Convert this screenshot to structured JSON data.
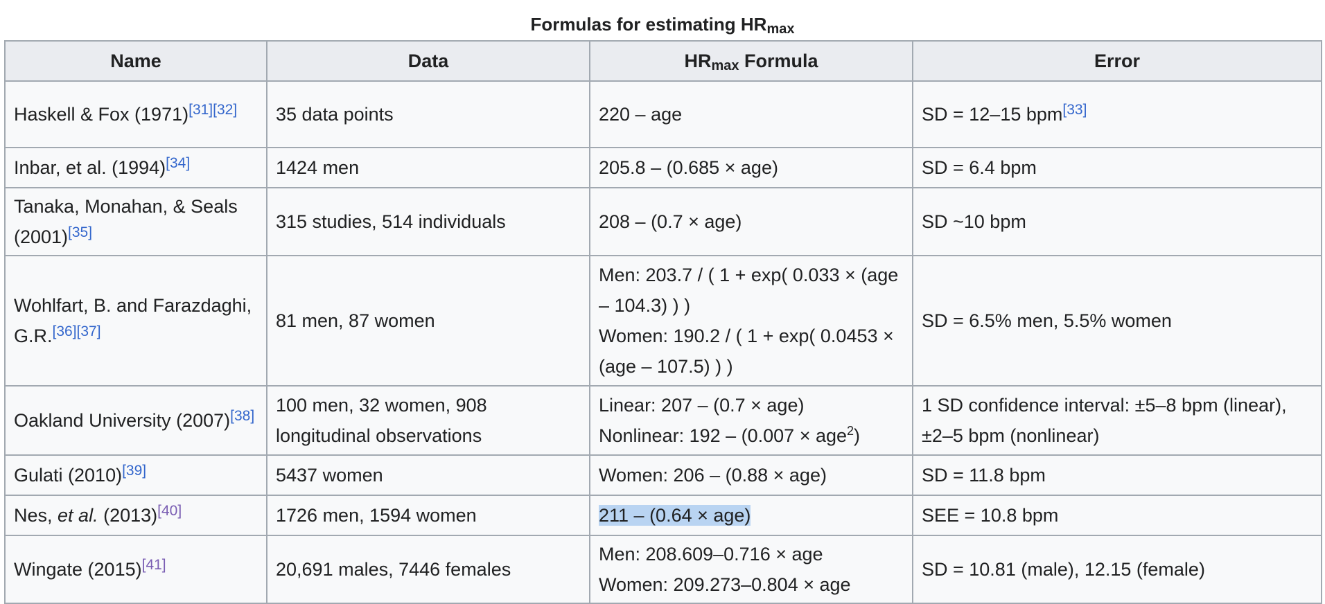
{
  "caption": {
    "prefix": "Formulas for estimating HR",
    "sub": "max"
  },
  "headers": {
    "name": "Name",
    "data": "Data",
    "formula_prefix": "HR",
    "formula_sub": "max",
    "formula_suffix": " Formula",
    "error": "Error"
  },
  "rows": [
    {
      "name": "Haskell & Fox (1971)",
      "refs": [
        "[31]",
        "[32]"
      ],
      "data": "35 data points",
      "formula": "220 – age",
      "error": "SD = 12–15 bpm",
      "error_ref": "[33]"
    },
    {
      "name": "Inbar, et al. (1994)",
      "refs": [
        "[34]"
      ],
      "data": "1424 men",
      "formula": "205.8 – (0.685 × age)",
      "error": "SD = 6.4 bpm"
    },
    {
      "name": "Tanaka, Monahan, & Seals (2001)",
      "refs": [
        "[35]"
      ],
      "data": "315 studies, 514 individuals",
      "formula": "208 – (0.7 × age)",
      "error": "SD ~10 bpm"
    },
    {
      "name": "Wohlfart, B. and Farazdaghi, G.R.",
      "refs": [
        "[36]",
        "[37]"
      ],
      "data": "81 men, 87 women",
      "formula_men": "Men: 203.7 / ( 1 + exp( 0.033 × (age – 104.3) ) )",
      "formula_women": "Women: 190.2 / ( 1 + exp( 0.0453 × (age – 107.5) ) )",
      "error": "SD = 6.5% men, 5.5% women"
    },
    {
      "name": "Oakland University (2007)",
      "refs": [
        "[38]"
      ],
      "data": "100 men, 32 women, 908 longitudinal observations",
      "formula_linear": "Linear: 207 – (0.7 × age)",
      "formula_nonlinear_prefix": "Nonlinear: 192 – (0.007 × age",
      "formula_nonlinear_pow": "2",
      "formula_nonlinear_suffix": ")",
      "error": "1 SD confidence interval: ±5–8 bpm (linear), ±2–5 bpm (nonlinear)"
    },
    {
      "name": "Gulati (2010)",
      "refs": [
        "[39]"
      ],
      "data": "5437 women",
      "formula": "Women: 206 – (0.88 × age)",
      "error": "SD = 11.8 bpm"
    },
    {
      "name_prefix": "Nes, ",
      "name_em": "et al.",
      "name_suffix": " (2013)",
      "refs": [
        "[40]"
      ],
      "data": "1726 men, 1594 women",
      "formula": "211 – (0.64 × age)",
      "error": "SEE = 10.8 bpm"
    },
    {
      "name": "Wingate (2015)",
      "refs": [
        "[41]"
      ],
      "data": "20,691 males, 7446 females",
      "formula_men": "Men: 208.609–0.716 × age",
      "formula_women": "Women: 209.273–0.804 × age",
      "error": "SD = 10.81 (male), 12.15 (female)"
    }
  ],
  "colors": {
    "link": "#3366cc",
    "visited_link": "#795cb2",
    "border": "#a2a9b1",
    "header_bg": "#eaecf0",
    "cell_bg": "#f8f9fa",
    "selection": "#b9d4f2"
  }
}
